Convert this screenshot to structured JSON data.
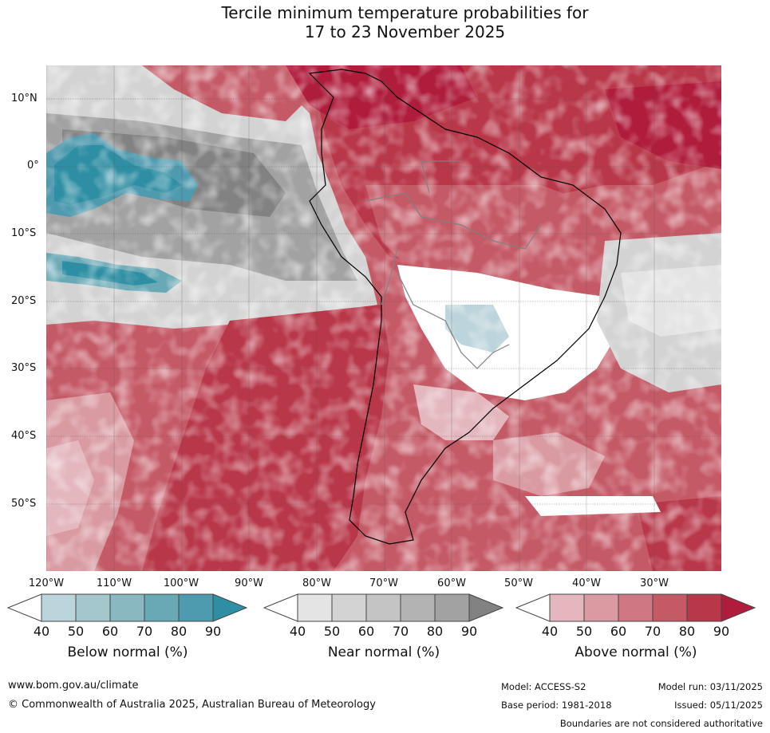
{
  "title": {
    "line1": "Tercile minimum temperature probabilities for",
    "line2": "17 to 23 November 2025"
  },
  "lat_labels": [
    "10°N",
    "0°",
    "10°S",
    "20°S",
    "30°S",
    "40°S",
    "50°S"
  ],
  "lon_labels": [
    "120°W",
    "110°W",
    "100°W",
    "90°W",
    "80°W",
    "70°W",
    "60°W",
    "50°W",
    "40°W",
    "30°W"
  ],
  "colorbars": [
    {
      "title": "Below normal (%)",
      "ticks": [
        "40",
        "50",
        "60",
        "70",
        "80",
        "90"
      ],
      "colors": [
        "#ffffff",
        "#bcd4db",
        "#a4c7cd",
        "#89b8c1",
        "#69a9b6",
        "#4e9aae",
        "#2e8ea3"
      ]
    },
    {
      "title": "Near normal (%)",
      "ticks": [
        "40",
        "50",
        "60",
        "70",
        "80",
        "90"
      ],
      "colors": [
        "#ffffff",
        "#e4e4e4",
        "#d3d3d3",
        "#c4c4c4",
        "#b3b3b3",
        "#a2a2a2",
        "#828282"
      ]
    },
    {
      "title": "Above normal (%)",
      "ticks": [
        "40",
        "50",
        "60",
        "70",
        "80",
        "90"
      ],
      "colors": [
        "#ffffff",
        "#e3b7bd",
        "#d99aa2",
        "#cf7883",
        "#c55a67",
        "#b83749",
        "#b01c3c"
      ]
    }
  ],
  "footer": {
    "url": "www.bom.gov.au/climate",
    "copyright": "© Commonwealth of Australia 2025, Australian Bureau of Meteorology",
    "model": "Model: ACCESS-S2",
    "model_run": "Model run: 03/11/2025",
    "base_period": "Base period: 1981-2018",
    "issued": "Issued: 05/11/2025",
    "disclaimer": "Boundaries are not considered authoritative"
  }
}
